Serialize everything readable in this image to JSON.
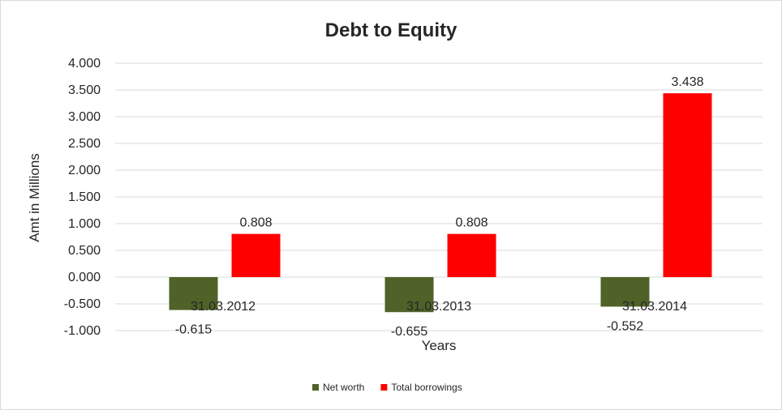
{
  "chart_data": {
    "type": "bar",
    "title": "Debt to Equity",
    "xlabel": "Years",
    "ylabel": "Amt in Millions",
    "categories": [
      "31.03.2012",
      "31.03.2013",
      "31.03.2014"
    ],
    "ylim": [
      -1.0,
      4.0
    ],
    "yticks": [
      "4.000",
      "3.500",
      "3.000",
      "2.500",
      "2.000",
      "1.500",
      "1.000",
      "0.500",
      "0.000",
      "-0.500",
      "-1.000"
    ],
    "grid": true,
    "legend_position": "bottom",
    "series": [
      {
        "name": "Net worth",
        "color": "#4f6228",
        "values": [
          -0.615,
          -0.655,
          -0.552
        ],
        "labels": [
          "-0.615",
          "-0.655",
          "-0.552"
        ]
      },
      {
        "name": "Total borrowings",
        "color": "#ff0000",
        "values": [
          0.808,
          0.808,
          3.438
        ],
        "labels": [
          "0.808",
          "0.808",
          "3.438"
        ]
      }
    ]
  }
}
